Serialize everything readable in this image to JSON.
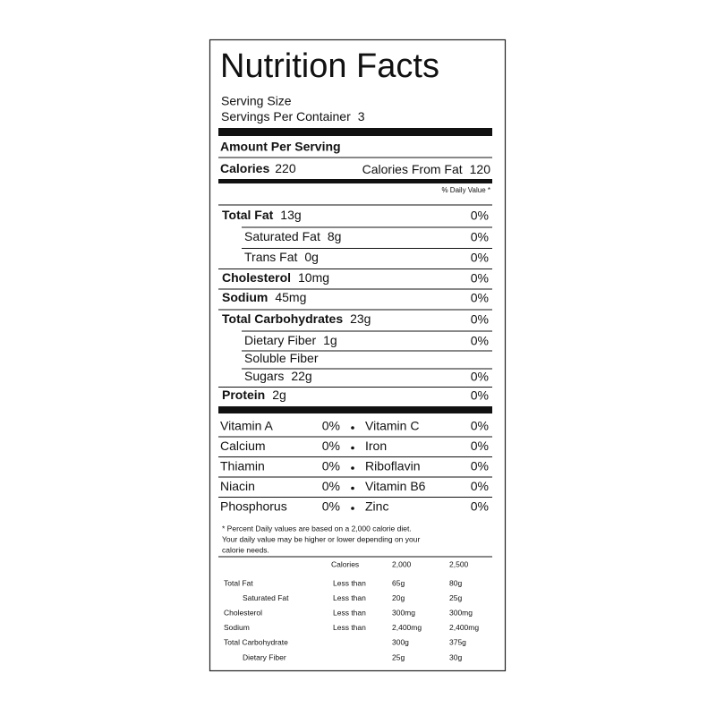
{
  "header": {
    "title": "Nutrition Facts",
    "serving_size_label": "Serving Size",
    "servings_label": "Servings Per Container",
    "servings_value": "3"
  },
  "amount_per_serving": "Amount Per Serving",
  "calories": {
    "label": "Calories",
    "value": "220",
    "from_fat_label": "Calories From Fat",
    "from_fat_value": "120"
  },
  "daily_value_header": "% Daily Value *",
  "nutrients": [
    {
      "name": "Total Fat",
      "amount": "13g",
      "dv": "0%",
      "bold": true
    },
    {
      "name": "Saturated Fat",
      "amount": "8g",
      "dv": "0%",
      "indent": true
    },
    {
      "name": "Trans Fat",
      "amount": "0g",
      "dv": "0%",
      "indent": true
    },
    {
      "name": "Cholesterol",
      "amount": "10mg",
      "dv": "0%",
      "bold": true
    },
    {
      "name": "Sodium",
      "amount": "45mg",
      "dv": "0%",
      "bold": true
    },
    {
      "name": "Total Carbohydrates",
      "amount": "23g",
      "dv": "0%",
      "bold": true
    },
    {
      "name": "Dietary Fiber",
      "amount": "1g",
      "dv": "0%",
      "indent": true
    },
    {
      "name": "Soluble Fiber",
      "indent": true
    },
    {
      "name": "Sugars",
      "amount": "22g",
      "dv": "0%",
      "indent": true
    },
    {
      "name": "Protein",
      "amount": "2g",
      "dv": "0%",
      "bold": true
    }
  ],
  "vitamins": [
    [
      "Vitamin A",
      "0%",
      "Vitamin C",
      "0%"
    ],
    [
      "Calcium",
      "0%",
      "Iron",
      "0%"
    ],
    [
      "Thiamin",
      "0%",
      "Riboflavin",
      "0%"
    ],
    [
      "Niacin",
      "0%",
      "Vitamin B6",
      "0%"
    ],
    [
      "Phosphorus",
      "0%",
      "Zinc",
      "0%"
    ]
  ],
  "footnote": [
    "* Percent Daily values are based on a 2,000 calorie diet.",
    "Your daily value may be higher or lower depending on your",
    "calorie needs."
  ],
  "reference_table": {
    "header": [
      "Calories",
      "2,000",
      "2,500"
    ],
    "rows": [
      {
        "name": "Total Fat",
        "qualifier": "Less than",
        "values": [
          "65g",
          "80g"
        ]
      },
      {
        "name": "Saturated Fat",
        "qualifier": "Less than",
        "values": [
          "20g",
          "25g"
        ],
        "indent": true
      },
      {
        "name": "Cholesterol",
        "qualifier": "Less than",
        "values": [
          "300mg",
          "300mg"
        ]
      },
      {
        "name": "Sodium",
        "qualifier": "Less than",
        "values": [
          "2,400mg",
          "2,400mg"
        ]
      },
      {
        "name": "Total Carbohydrate",
        "values": [
          "300g",
          "375g"
        ]
      },
      {
        "name": "Dietary Fiber",
        "values": [
          "25g",
          "30g"
        ],
        "indent": true
      }
    ]
  }
}
